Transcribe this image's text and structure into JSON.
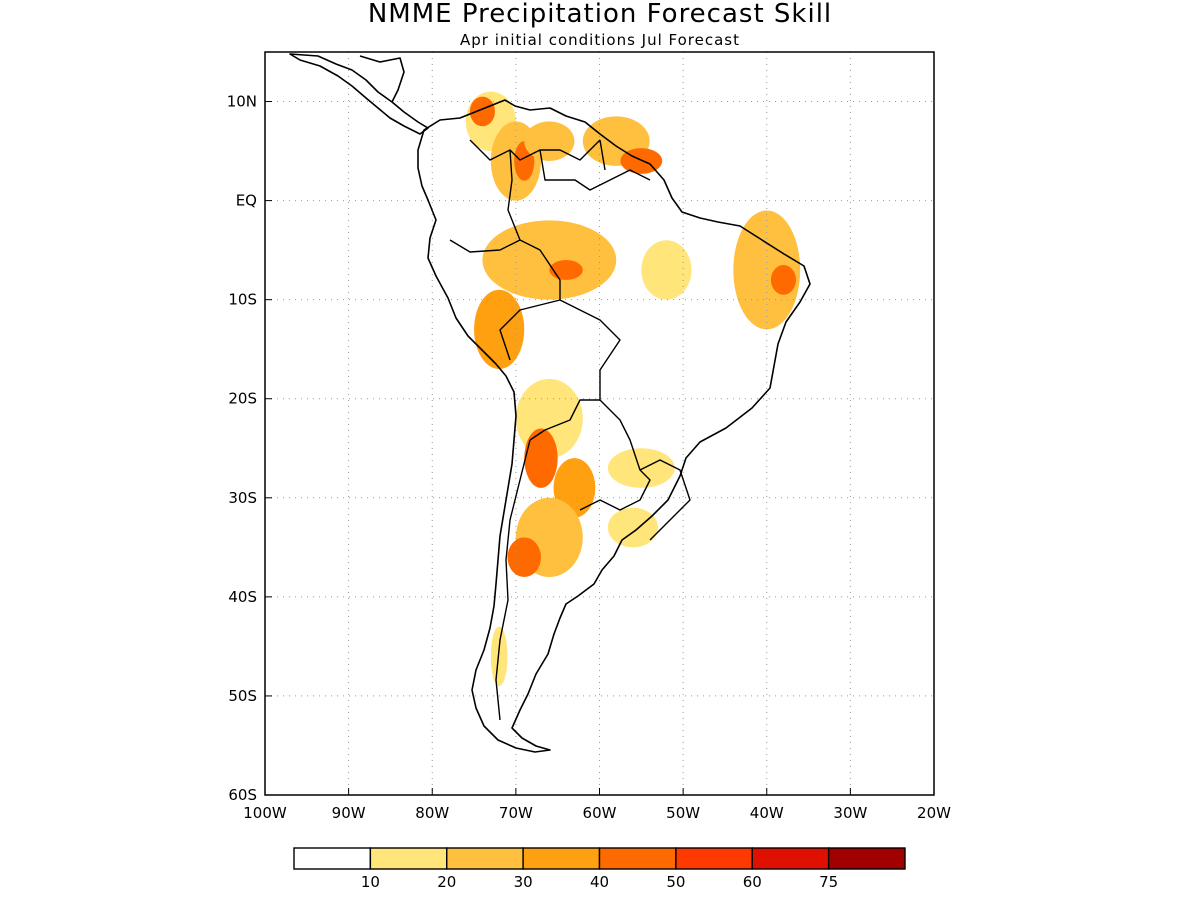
{
  "title": "NMME Precipitation Forecast Skill",
  "subtitle": "Apr initial conditions   Jul Forecast",
  "map": {
    "lon_range": [
      -100,
      -20
    ],
    "lat_range": [
      -60,
      15
    ],
    "lon_ticks": [
      {
        "value": -100,
        "label": "100W"
      },
      {
        "value": -90,
        "label": "90W"
      },
      {
        "value": -80,
        "label": "80W"
      },
      {
        "value": -70,
        "label": "70W"
      },
      {
        "value": -60,
        "label": "60W"
      },
      {
        "value": -50,
        "label": "50W"
      },
      {
        "value": -40,
        "label": "40W"
      },
      {
        "value": -30,
        "label": "30W"
      },
      {
        "value": -20,
        "label": "20W"
      }
    ],
    "lat_ticks": [
      {
        "value": 10,
        "label": "10N"
      },
      {
        "value": 0,
        "label": "EQ"
      },
      {
        "value": -10,
        "label": "10S"
      },
      {
        "value": -20,
        "label": "20S"
      },
      {
        "value": -30,
        "label": "30S"
      },
      {
        "value": -40,
        "label": "40S"
      },
      {
        "value": -50,
        "label": "50S"
      },
      {
        "value": -60,
        "label": "60S"
      }
    ],
    "grid": "dotted"
  },
  "colorbar": {
    "colors": [
      "#ffffff",
      "#ffe57a",
      "#ffc040",
      "#ffa010",
      "#ff6a00",
      "#ff3a00",
      "#e01000",
      "#a00000"
    ],
    "labels": [
      "10",
      "20",
      "30",
      "40",
      "50",
      "60",
      "75"
    ]
  },
  "skill_regions": [
    {
      "lon": -73,
      "lat": 8,
      "rx": 3,
      "ry": 3,
      "level": 1
    },
    {
      "lon": -74,
      "lat": 9,
      "rx": 1.5,
      "ry": 1.5,
      "level": 4
    },
    {
      "lon": -70,
      "lat": 4,
      "rx": 3,
      "ry": 4,
      "level": 2
    },
    {
      "lon": -69,
      "lat": 4,
      "rx": 1.2,
      "ry": 2,
      "level": 4
    },
    {
      "lon": -66,
      "lat": 6,
      "rx": 3,
      "ry": 2,
      "level": 2
    },
    {
      "lon": -58,
      "lat": 6,
      "rx": 4,
      "ry": 2.5,
      "level": 2
    },
    {
      "lon": -55,
      "lat": 4,
      "rx": 2.5,
      "ry": 1.3,
      "level": 4
    },
    {
      "lon": -66,
      "lat": -6,
      "rx": 8,
      "ry": 4,
      "level": 2
    },
    {
      "lon": -64,
      "lat": -7,
      "rx": 2,
      "ry": 1,
      "level": 4
    },
    {
      "lon": -52,
      "lat": -7,
      "rx": 3,
      "ry": 3,
      "level": 1
    },
    {
      "lon": -40,
      "lat": -7,
      "rx": 4,
      "ry": 6,
      "level": 2
    },
    {
      "lon": -38,
      "lat": -8,
      "rx": 1.5,
      "ry": 1.5,
      "level": 4
    },
    {
      "lon": -72,
      "lat": -13,
      "rx": 3,
      "ry": 4,
      "level": 3
    },
    {
      "lon": -66,
      "lat": -22,
      "rx": 4,
      "ry": 4,
      "level": 1
    },
    {
      "lon": -67,
      "lat": -26,
      "rx": 2,
      "ry": 3,
      "level": 4
    },
    {
      "lon": -63,
      "lat": -29,
      "rx": 2.5,
      "ry": 3,
      "level": 3
    },
    {
      "lon": -66,
      "lat": -34,
      "rx": 4,
      "ry": 4,
      "level": 2
    },
    {
      "lon": -69,
      "lat": -36,
      "rx": 2,
      "ry": 2,
      "level": 4
    },
    {
      "lon": -55,
      "lat": -27,
      "rx": 4,
      "ry": 2,
      "level": 1
    },
    {
      "lon": -56,
      "lat": -33,
      "rx": 3,
      "ry": 2,
      "level": 1
    },
    {
      "lon": -72,
      "lat": -46,
      "rx": 1,
      "ry": 3,
      "level": 1
    }
  ]
}
